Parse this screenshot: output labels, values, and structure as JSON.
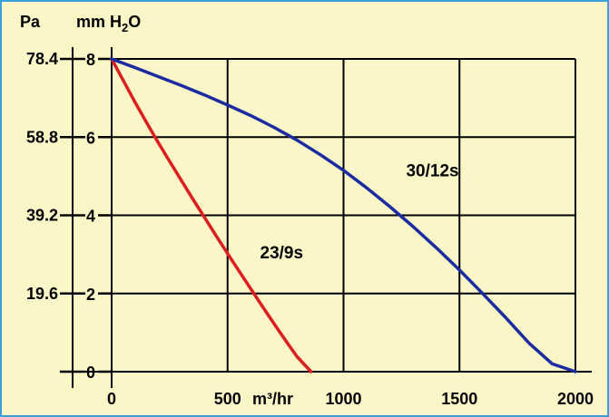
{
  "chart_data": {
    "type": "line",
    "pa_axis_title": "Pa",
    "mm_axis_title": "mm H",
    "mm_axis_sub": "2",
    "mm_axis_tail": "O",
    "xlabel": "m³/hr",
    "xlim": [
      0,
      2000
    ],
    "ylim": [
      0,
      8
    ],
    "x_ticks": [
      0,
      500,
      1000,
      1500,
      2000
    ],
    "x_tick_labels": [
      "0",
      "500",
      "1000",
      "1500",
      "2000"
    ],
    "y_ticks": [
      0,
      2,
      4,
      6,
      8
    ],
    "y_tick_labels": [
      "0",
      "2",
      "4",
      "6",
      "8"
    ],
    "pa_tick_labels": [
      "",
      "19.6",
      "39.2",
      "58.8",
      "78.4"
    ],
    "grid": true,
    "series": [
      {
        "name": "23/9s",
        "color": "#dd1e1e",
        "x": [
          0,
          50,
          100,
          150,
          200,
          250,
          300,
          350,
          400,
          450,
          500,
          550,
          600,
          650,
          700,
          750,
          800,
          860
        ],
        "y": [
          8,
          7.45,
          6.9,
          6.38,
          5.87,
          5.38,
          4.9,
          4.42,
          3.95,
          3.48,
          3.02,
          2.57,
          2.12,
          1.67,
          1.23,
          0.8,
          0.38,
          0
        ]
      },
      {
        "name": "30/12s",
        "color": "#1a2ca0",
        "x": [
          0,
          100,
          200,
          300,
          400,
          500,
          600,
          700,
          800,
          900,
          1000,
          1100,
          1200,
          1300,
          1400,
          1500,
          1600,
          1700,
          1800,
          1900,
          2000
        ],
        "y": [
          8,
          7.78,
          7.55,
          7.32,
          7.08,
          6.82,
          6.55,
          6.25,
          5.92,
          5.55,
          5.15,
          4.7,
          4.22,
          3.71,
          3.17,
          2.6,
          2.0,
          1.38,
          0.73,
          0.2,
          0
        ]
      }
    ]
  }
}
